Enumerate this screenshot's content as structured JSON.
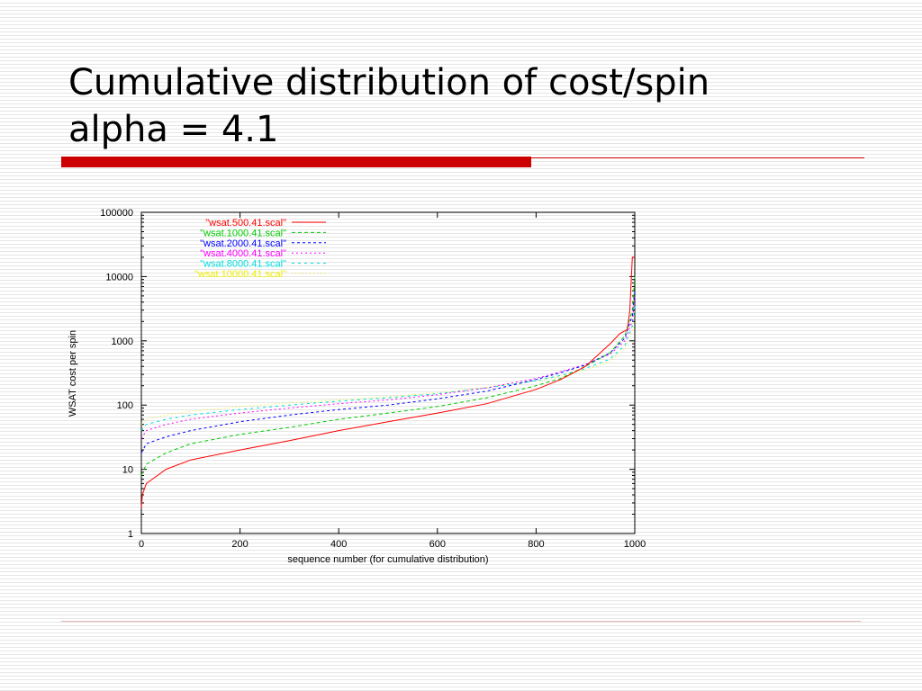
{
  "slide": {
    "title_line1": "Cumulative distribution of cost/spin",
    "title_line2": "alpha = 4.1"
  },
  "colors": {
    "accent_bar": "#cc0000",
    "background": "#ffffff",
    "background_stripe": "#e6e6e6"
  },
  "chart_data": {
    "type": "line",
    "title": "",
    "xlabel": "sequence number (for cumulative distribution)",
    "ylabel": "WSAT cost per spin",
    "xlim": [
      0,
      1000
    ],
    "ylim": [
      1,
      100000
    ],
    "yscale": "log",
    "grid": false,
    "legend_position": "top-left",
    "x_ticks": [
      0,
      200,
      400,
      600,
      800,
      1000
    ],
    "y_ticks": [
      1,
      10,
      100,
      1000,
      10000,
      100000
    ],
    "y_tick_labels": [
      "1",
      "10",
      "100",
      "1000",
      "10000",
      "100000"
    ],
    "series": [
      {
        "name": "\"wsat.500.41.scal\"",
        "color": "#ff0000",
        "dash": "solid",
        "points": [
          [
            0,
            2.5
          ],
          [
            2,
            4
          ],
          [
            10,
            6
          ],
          [
            50,
            10
          ],
          [
            100,
            14
          ],
          [
            200,
            20
          ],
          [
            300,
            28
          ],
          [
            400,
            40
          ],
          [
            500,
            55
          ],
          [
            600,
            75
          ],
          [
            700,
            105
          ],
          [
            800,
            175
          ],
          [
            850,
            250
          ],
          [
            900,
            400
          ],
          [
            950,
            900
          ],
          [
            970,
            1300
          ],
          [
            985,
            1500
          ],
          [
            990,
            3000
          ],
          [
            995,
            20000
          ],
          [
            1000,
            20000
          ]
        ]
      },
      {
        "name": "\"wsat.1000.41.scal\"",
        "color": "#00cc00",
        "dash": "4,3",
        "points": [
          [
            0,
            8
          ],
          [
            10,
            12
          ],
          [
            50,
            18
          ],
          [
            100,
            25
          ],
          [
            200,
            35
          ],
          [
            300,
            45
          ],
          [
            400,
            60
          ],
          [
            500,
            75
          ],
          [
            600,
            95
          ],
          [
            700,
            130
          ],
          [
            800,
            200
          ],
          [
            850,
            260
          ],
          [
            900,
            400
          ],
          [
            950,
            650
          ],
          [
            980,
            1200
          ],
          [
            995,
            3000
          ],
          [
            1000,
            10000
          ]
        ]
      },
      {
        "name": "\"wsat.2000.41.scal\"",
        "color": "#0000ff",
        "dash": "3,3",
        "points": [
          [
            0,
            18
          ],
          [
            10,
            25
          ],
          [
            50,
            32
          ],
          [
            100,
            40
          ],
          [
            200,
            55
          ],
          [
            300,
            70
          ],
          [
            400,
            85
          ],
          [
            500,
            100
          ],
          [
            600,
            125
          ],
          [
            700,
            165
          ],
          [
            800,
            250
          ],
          [
            850,
            320
          ],
          [
            900,
            420
          ],
          [
            950,
            650
          ],
          [
            980,
            1100
          ],
          [
            995,
            2500
          ],
          [
            1000,
            6000
          ]
        ]
      },
      {
        "name": "\"wsat.4000.41.scal\"",
        "color": "#ff00ff",
        "dash": "2,3",
        "points": [
          [
            0,
            30
          ],
          [
            10,
            40
          ],
          [
            50,
            50
          ],
          [
            100,
            60
          ],
          [
            200,
            75
          ],
          [
            300,
            90
          ],
          [
            400,
            105
          ],
          [
            500,
            120
          ],
          [
            600,
            145
          ],
          [
            700,
            185
          ],
          [
            800,
            260
          ],
          [
            850,
            330
          ],
          [
            900,
            430
          ],
          [
            950,
            620
          ],
          [
            980,
            1000
          ],
          [
            995,
            2000
          ],
          [
            1000,
            5000
          ]
        ]
      },
      {
        "name": "\"wsat.8000.41.scal\"",
        "color": "#00dddd",
        "dash": "3,4",
        "points": [
          [
            0,
            40
          ],
          [
            10,
            50
          ],
          [
            50,
            60
          ],
          [
            100,
            70
          ],
          [
            200,
            85
          ],
          [
            300,
            100
          ],
          [
            400,
            115
          ],
          [
            500,
            130
          ],
          [
            600,
            150
          ],
          [
            700,
            185
          ],
          [
            800,
            240
          ],
          [
            850,
            290
          ],
          [
            900,
            370
          ],
          [
            950,
            520
          ],
          [
            980,
            850
          ],
          [
            995,
            1700
          ],
          [
            1000,
            3500
          ]
        ]
      },
      {
        "name": "\"wsat.10000.41.scal\"",
        "color": "#eeee00",
        "dash": "1,3",
        "points": [
          [
            0,
            50
          ],
          [
            10,
            60
          ],
          [
            50,
            70
          ],
          [
            100,
            80
          ],
          [
            200,
            95
          ],
          [
            300,
            108
          ],
          [
            400,
            120
          ],
          [
            500,
            135
          ],
          [
            600,
            155
          ],
          [
            700,
            190
          ],
          [
            800,
            240
          ],
          [
            850,
            280
          ],
          [
            900,
            350
          ],
          [
            950,
            480
          ],
          [
            980,
            750
          ],
          [
            995,
            1400
          ],
          [
            1000,
            3000
          ]
        ]
      }
    ]
  }
}
